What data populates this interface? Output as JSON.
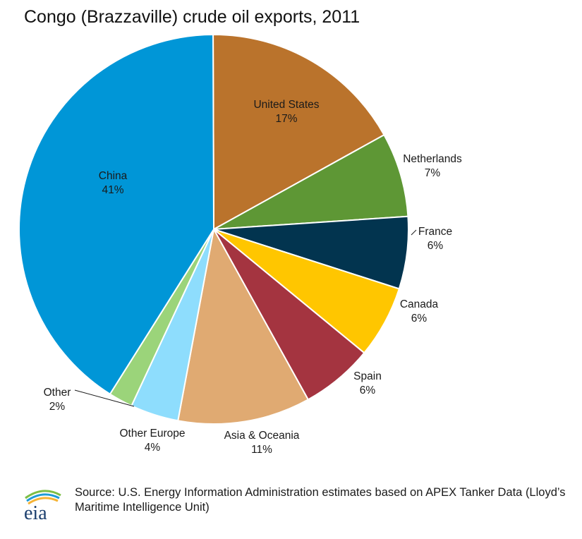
{
  "chart_data": {
    "type": "pie",
    "title": "Congo (Brazzaville) crude oil exports, 2011",
    "slices": [
      {
        "name": "United States",
        "value": 17,
        "label": "17%",
        "color": "#BA732C"
      },
      {
        "name": "Netherlands",
        "value": 7,
        "label": "7%",
        "color": "#5E9735"
      },
      {
        "name": "France",
        "value": 6,
        "label": "6%",
        "color": "#02344F"
      },
      {
        "name": "Canada",
        "value": 6,
        "label": "6%",
        "color": "#FFC600"
      },
      {
        "name": "Spain",
        "value": 6,
        "label": "6%",
        "color": "#A43440"
      },
      {
        "name": "Asia & Oceania",
        "value": 11,
        "label": "11%",
        "color": "#E0AA72"
      },
      {
        "name": "Other Europe",
        "value": 4,
        "label": "4%",
        "color": "#8EDDFD"
      },
      {
        "name": "Other",
        "value": 2,
        "label": "2%",
        "color": "#9BD47A"
      },
      {
        "name": "China",
        "value": 41,
        "label": "41%",
        "color": "#0096D7"
      }
    ]
  },
  "footer": {
    "logo_text": "eia",
    "source": "Source: U.S. Energy Information Administration estimates based on APEX Tanker Data (Lloyd’s Maritime Intelligence Unit)"
  }
}
